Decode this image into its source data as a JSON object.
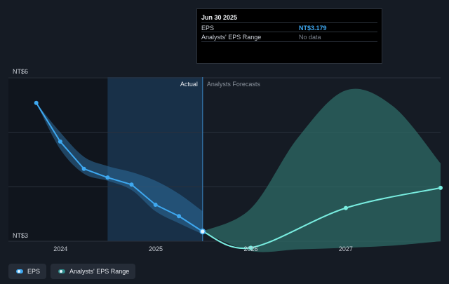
{
  "chart_data": {
    "type": "line",
    "y_unit_labels": {
      "top": "NT$6",
      "bottom": "NT$3"
    },
    "ylim": [
      3,
      6
    ],
    "xlim": [
      "2023-06-15",
      "2027-12-31"
    ],
    "x_ticks": [
      {
        "date": "2024-01-01",
        "label": "2024"
      },
      {
        "date": "2025-01-01",
        "label": "2025"
      },
      {
        "date": "2026-01-01",
        "label": "2026"
      },
      {
        "date": "2027-01-01",
        "label": "2027"
      }
    ],
    "region_labels": {
      "actual": "Actual",
      "forecast": "Analysts Forecasts"
    },
    "split_date": "2025-06-30",
    "highlight_start": "2024-06-30",
    "grid": true,
    "series": [
      {
        "name": "EPS",
        "color": "#3ea8f0",
        "points": [
          {
            "x": "2023-09-30",
            "y": 5.54
          },
          {
            "x": "2023-12-31",
            "y": 4.83
          },
          {
            "x": "2024-03-31",
            "y": 4.33
          },
          {
            "x": "2024-06-30",
            "y": 4.17
          },
          {
            "x": "2024-09-30",
            "y": 4.04
          },
          {
            "x": "2024-12-31",
            "y": 3.67
          },
          {
            "x": "2025-03-31",
            "y": 3.46
          },
          {
            "x": "2025-06-30",
            "y": 3.179
          }
        ]
      },
      {
        "name": "EPS Forecast",
        "color": "#79ede0",
        "points": [
          {
            "x": "2025-06-30",
            "y": 3.179
          },
          {
            "x": "2026-01-01",
            "y": 2.88
          },
          {
            "x": "2027-01-01",
            "y": 3.61
          },
          {
            "x": "2027-12-31",
            "y": 3.98
          }
        ]
      }
    ],
    "range_band_actual": {
      "x": [
        "2023-09-30",
        "2023-12-31",
        "2024-03-31",
        "2024-06-30",
        "2024-09-30",
        "2024-12-31",
        "2025-03-31",
        "2025-06-30"
      ],
      "high": [
        5.54,
        5.0,
        4.55,
        4.38,
        4.27,
        4.11,
        3.87,
        3.55
      ],
      "low": [
        5.54,
        4.69,
        4.24,
        4.11,
        3.94,
        3.55,
        3.33,
        3.13
      ]
    },
    "range_band_forecast": {
      "x": [
        "2025-06-30",
        "2026-01-01",
        "2026-07-01",
        "2027-01-01",
        "2027-07-01",
        "2027-12-31"
      ],
      "high": [
        3.18,
        3.6,
        4.9,
        5.77,
        5.48,
        4.43
      ],
      "low": [
        3.17,
        2.82,
        2.85,
        2.88,
        2.92,
        3.0
      ]
    }
  },
  "tooltip": {
    "date": "Jun 30 2025",
    "eps_label": "EPS",
    "eps_value": "NT$3.179",
    "range_label": "Analysts' EPS Range",
    "range_value": "No data"
  },
  "legend": {
    "items": [
      {
        "label": "EPS",
        "color": "#3ea8f0"
      },
      {
        "label": "Analysts' EPS Range",
        "color": "#2e8a8a"
      }
    ]
  },
  "colors": {
    "background": "#151b24",
    "actual_band": "#2d6d9c",
    "forecast_band": "#2e6b66",
    "highlight": "#1b3a57"
  }
}
